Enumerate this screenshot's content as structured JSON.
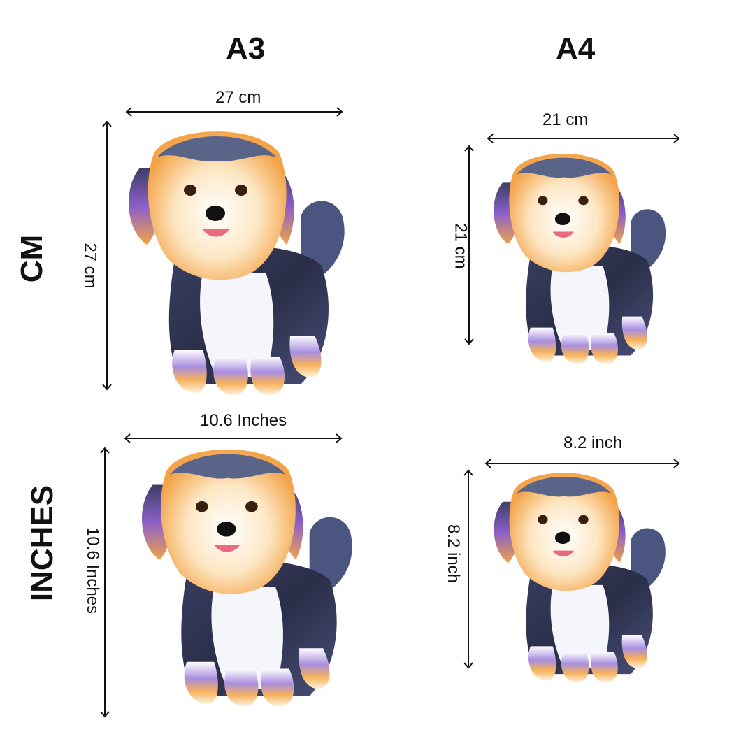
{
  "columns": [
    {
      "label": "A3"
    },
    {
      "label": "A4"
    }
  ],
  "rows": [
    {
      "label": "CM"
    },
    {
      "label": "INCHES"
    }
  ],
  "dimensions": {
    "a3_cm": {
      "width": "27 cm",
      "height": "27 cm"
    },
    "a4_cm": {
      "width": "21 cm",
      "height": "21 cm"
    },
    "a3_inches": {
      "width": "10.6  Inches",
      "height": "10.6 Inches"
    },
    "a4_inches": {
      "width": "8.2 inch",
      "height": "8.2 inch"
    }
  },
  "image": {
    "subject-icon": "dog-illustration"
  },
  "colors": {
    "text": "#111111",
    "background": "#ffffff",
    "fur_dark": "#2f3450",
    "fur_accent": [
      "#f5a442",
      "#9b6fd6",
      "#6fb7f0",
      "#f3e07a"
    ]
  }
}
